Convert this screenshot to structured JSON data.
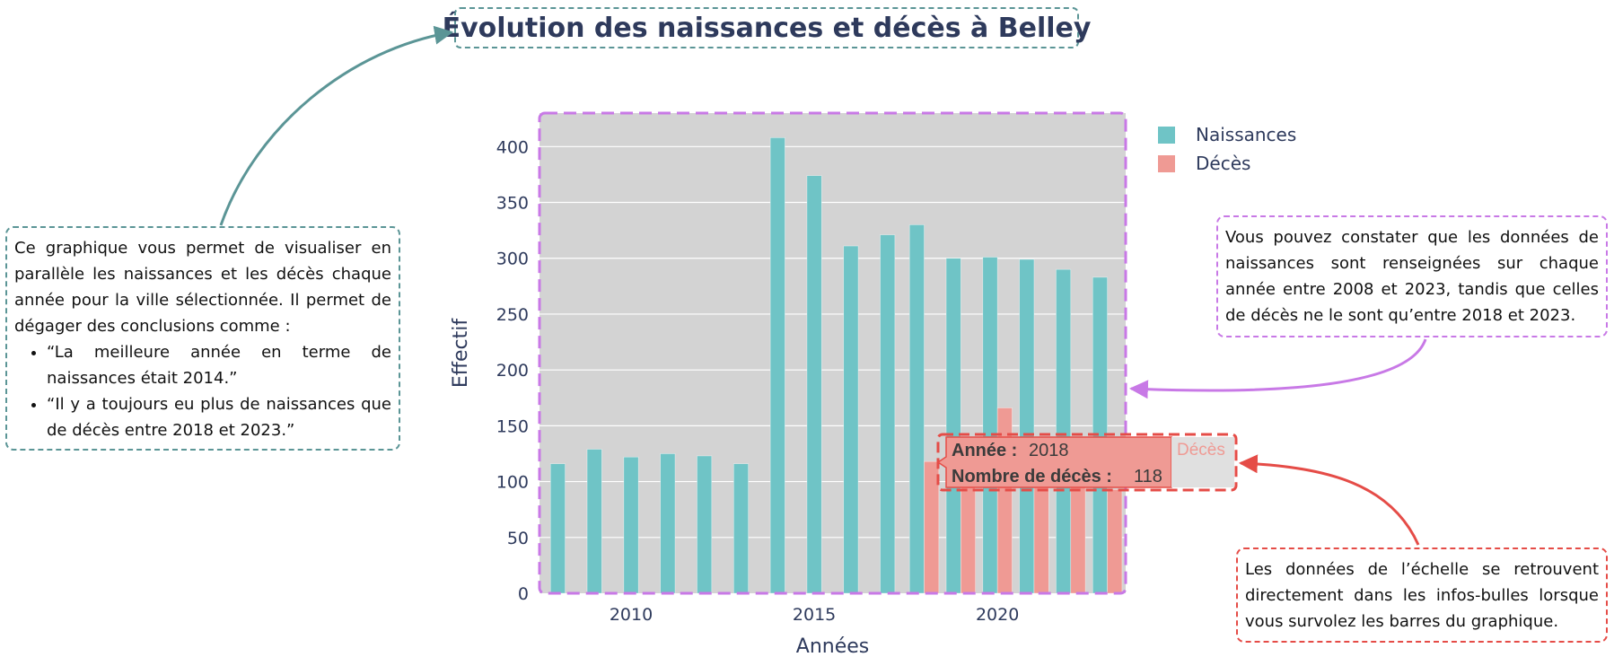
{
  "title": "Évolution des naissances et décès à Belley",
  "notes": {
    "left_intro": "Ce graphique vous permet de visualiser en parallèle les naissances et les décès chaque année pour la ville sélectionnée. Il permet de dégager des conclusions comme :",
    "left_bullets": [
      "“La meilleure année en terme de naissances était 2014.”",
      "“Il y a toujours eu plus de naissances que de décès entre 2018 et 2023.”"
    ],
    "right": "Vous pouvez constater que les données de naissances sont renseignées sur chaque année entre 2008 et 2023, tandis que celles de décès ne le sont qu’entre 2018 et 2023.",
    "bottom": "Les données de l’échelle se retrouvent directement dans les infos-bulles lorsque vous survolez les barres du graphique."
  },
  "tooltip": {
    "year_label": "Année :",
    "year_value": "2018",
    "deaths_label": "Nombre de décès :",
    "deaths_value": "118",
    "series_name": "Décès"
  },
  "colors": {
    "naissances": "#6fc4c6",
    "deces": "#ef9a94",
    "plot_bg": "#d3d3d3",
    "axis_text": "#2e3a5c",
    "teal_annot": "#5b9596",
    "purple_annot": "#c879e6",
    "red_annot": "#e54c47"
  },
  "chart_data": {
    "type": "bar",
    "title": "Évolution des naissances et décès à Belley",
    "xlabel": "Années",
    "ylabel": "Effectif",
    "xlim": [
      2007.5,
      2023.5
    ],
    "ylim": [
      0,
      430
    ],
    "x_ticks": [
      2010,
      2015,
      2020
    ],
    "y_ticks": [
      0,
      50,
      100,
      150,
      200,
      250,
      300,
      350,
      400
    ],
    "grid": true,
    "legend_position": "top-right",
    "series": [
      {
        "name": "Naissances",
        "color": "#6fc4c6",
        "x": [
          2008,
          2009,
          2010,
          2011,
          2012,
          2013,
          2014,
          2015,
          2016,
          2017,
          2018,
          2019,
          2020,
          2021,
          2022,
          2023
        ],
        "values": [
          116,
          129,
          122,
          125,
          123,
          116,
          408,
          374,
          311,
          321,
          330,
          300,
          301,
          299,
          290,
          283
        ]
      },
      {
        "name": "Décès",
        "color": "#ef9a94",
        "x": [
          2018,
          2019,
          2020,
          2021,
          2022,
          2023
        ],
        "values": [
          118,
          95,
          166,
          102,
          95,
          93
        ]
      }
    ]
  }
}
